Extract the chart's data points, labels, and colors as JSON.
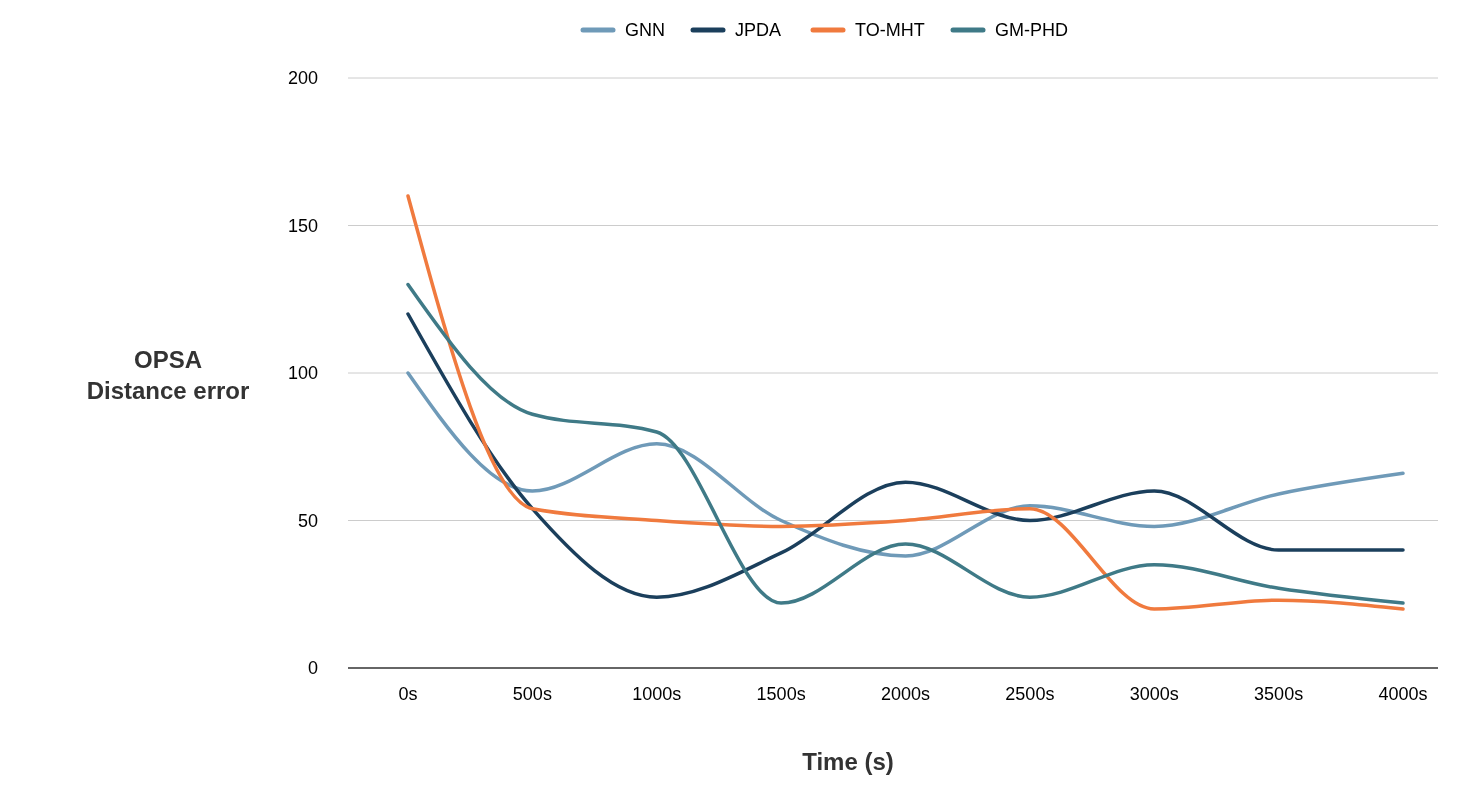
{
  "chart_data": {
    "type": "line",
    "xlabel": "Time (s)",
    "ylabel": "OPSA Distance error",
    "categories": [
      "0s",
      "500s",
      "1000s",
      "1500s",
      "2000s",
      "2500s",
      "3000s",
      "3500s",
      "4000s"
    ],
    "series": [
      {
        "name": "GNN",
        "color": "#6f9ab8",
        "values": [
          100,
          60,
          76,
          50,
          38,
          55,
          48,
          59,
          66
        ]
      },
      {
        "name": "JPDA",
        "color": "#1b3f5c",
        "values": [
          120,
          54,
          24,
          39,
          63,
          50,
          60,
          40,
          40
        ]
      },
      {
        "name": "TO-MHT",
        "color": "#f07a3e",
        "values": [
          160,
          54,
          50,
          48,
          50,
          54,
          20,
          23,
          20
        ]
      },
      {
        "name": "GM-PHD",
        "color": "#3f7a87",
        "values": [
          130,
          86,
          80,
          22,
          42,
          24,
          35,
          27,
          22
        ]
      }
    ],
    "ylim": [
      0,
      200
    ],
    "yticks": [
      0,
      50,
      100,
      150,
      200
    ],
    "grid": "y",
    "legend": "top",
    "marker": "none",
    "line_style": "solid"
  }
}
